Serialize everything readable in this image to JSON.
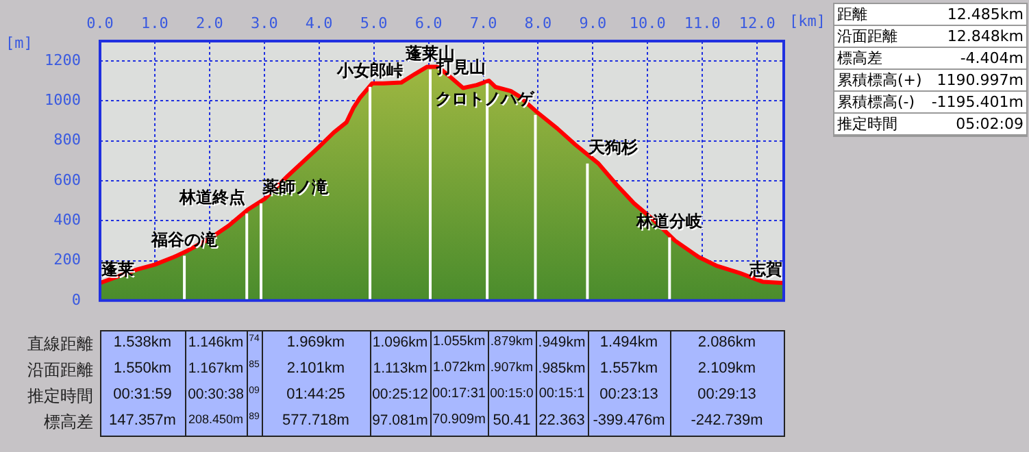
{
  "chart_data": {
    "type": "area",
    "xlabel": "[km]",
    "ylabel": "[m]",
    "x": [
      0,
      0.68,
      1.0,
      1.35,
      1.6,
      2.0,
      2.35,
      2.7,
      3.0,
      3.43,
      4.0,
      4.27,
      4.5,
      4.63,
      4.75,
      4.97,
      5.17,
      5.5,
      5.75,
      5.97,
      6.17,
      6.38,
      6.63,
      6.88,
      7.1,
      7.22,
      7.5,
      7.68,
      7.75,
      7.98,
      8.35,
      8.68,
      9.1,
      9.43,
      9.75,
      10.1,
      10.5,
      10.93,
      11.25,
      11.68,
      12.1,
      12.485
    ],
    "series": [
      {
        "color": "#ff0000",
        "values": [
          88,
          156,
          180,
          218,
          250,
          310,
          375,
          456,
          508,
          625,
          770,
          842,
          893,
          967,
          1017,
          1088,
          1088,
          1092,
          1135,
          1171,
          1171,
          1124,
          1065,
          1080,
          1102,
          1070,
          1050,
          1019,
          1000,
          944,
          862,
          781,
          687,
          581,
          487,
          406,
          300,
          218,
          175,
          138,
          94,
          88
        ]
      }
    ],
    "xlim": [
      0,
      12.485
    ],
    "ylim": [
      0,
      1300
    ],
    "xticks": [
      {
        "value": 0,
        "label": "0.0"
      },
      {
        "value": 1,
        "label": "1.0"
      },
      {
        "value": 2,
        "label": "2.0"
      },
      {
        "value": 3,
        "label": "3.0"
      },
      {
        "value": 4,
        "label": "4.0"
      },
      {
        "value": 5,
        "label": "5.0"
      },
      {
        "value": 6,
        "label": "6.0"
      },
      {
        "value": 7,
        "label": "7.0"
      },
      {
        "value": 8,
        "label": "8.0"
      },
      {
        "value": 9,
        "label": "9.0"
      },
      {
        "value": 10,
        "label": "10.0"
      },
      {
        "value": 11,
        "label": "11.0"
      },
      {
        "value": 12,
        "label": "12.0"
      }
    ],
    "yticks": [
      0,
      200,
      400,
      600,
      800,
      1000,
      1200
    ],
    "grid": true,
    "legend": false,
    "marker": "none",
    "annotations": [
      {
        "text": "蓬莱",
        "x": 0,
        "y": 88
      },
      {
        "text": "福谷の滝",
        "x": 1.54,
        "y": 238
      },
      {
        "text": "林道終点",
        "x": 2.68,
        "y": 450
      },
      {
        "text": "薬師ノ滝",
        "x": 2.94,
        "y": 500
      },
      {
        "text": "小女郎峠",
        "x": 4.93,
        "y": 1085
      },
      {
        "text": "蓬莱山",
        "x": 6.03,
        "y": 1171
      },
      {
        "text": "打見山",
        "x": 7.07,
        "y": 1102
      },
      {
        "text": "クロトノハゲ",
        "x": 7.95,
        "y": 944
      },
      {
        "text": "天狗杉",
        "x": 8.9,
        "y": 700
      },
      {
        "text": "林道分岐",
        "x": 10.4,
        "y": 330
      },
      {
        "text": "志賀",
        "x": 12.485,
        "y": 88
      },
      "距離",
      "12.485km",
      "沿面距離",
      "12.848km",
      "標高差",
      "-4.404m",
      "累積標高(+)",
      "1190.997m",
      "累積標高(-)",
      "-1195.401m",
      "推定時間",
      "05:02:09",
      "直線距離",
      "沿面距離",
      "推定時間",
      "標高差",
      "1.538km",
      "1.146km",
      "74",
      "1.969km",
      "1.096km",
      "1.055km",
      ".879km",
      ".949km",
      "1.494km",
      "2.086km",
      "1.550km",
      "1.167km",
      "85",
      "2.101km",
      "1.113km",
      "1.072km",
      ".907km",
      ".985km",
      "1.557km",
      "2.109km",
      "00:31:59",
      "00:30:38",
      "09",
      "01:44:25",
      "00:25:12",
      "00:17:31",
      "00:15:0",
      "00:15:1",
      "00:23:13",
      "00:29:13",
      "147.357m",
      "208.450m",
      "89",
      "577.718m",
      "97.081m",
      "70.909m",
      "50.41",
      "22.363",
      "-399.476m",
      "-242.739m"
    ]
  }
}
